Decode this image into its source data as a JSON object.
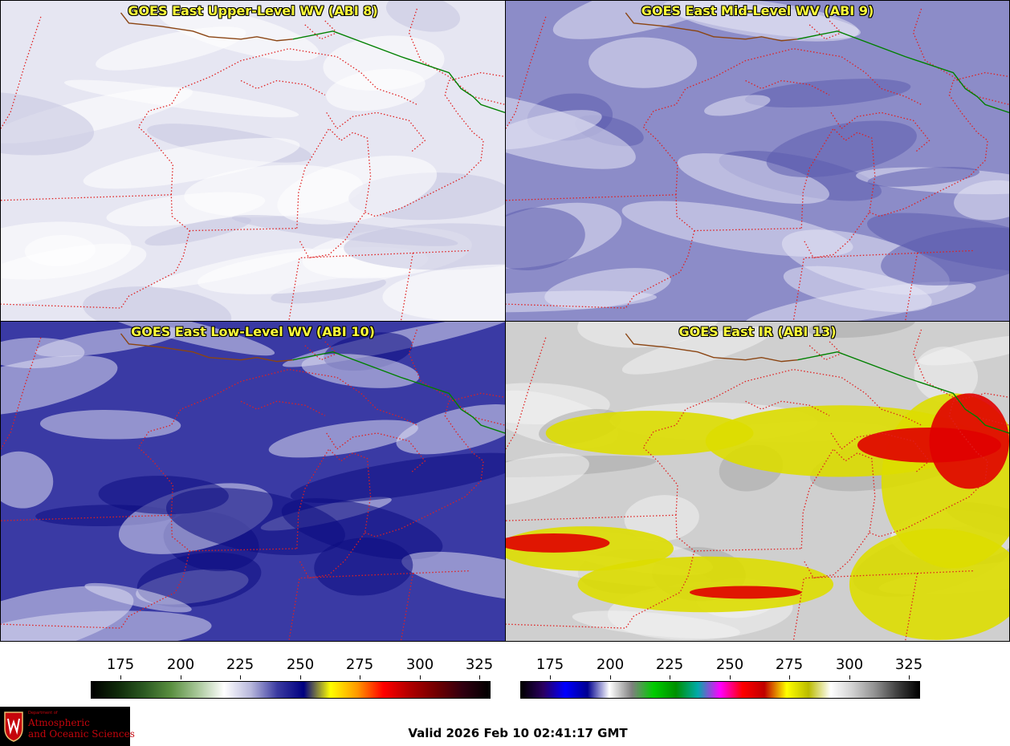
{
  "panels": [
    {
      "id": "ul",
      "title": "GOES East Upper-Level WV (ABI 8)",
      "colormap": "wv"
    },
    {
      "id": "ur",
      "title": "GOES East Mid-Level WV (ABI 9)",
      "colormap": "wv"
    },
    {
      "id": "ll",
      "title": "GOES East Low-Level WV (ABI 10)",
      "colormap": "wv"
    },
    {
      "id": "lr",
      "title": "GOES East IR (ABI 13)",
      "colormap": "ir"
    }
  ],
  "colorbars": [
    {
      "name": "water-vapor-colorbar",
      "ticks": [
        "175",
        "200",
        "225",
        "250",
        "275",
        "300",
        "325"
      ],
      "range": [
        163,
        330
      ],
      "colors": [
        "#000000",
        "#0f2a0a",
        "#2c5a22",
        "#5a8f40",
        "#a9c89a",
        "#ffffff",
        "#b8b8dc",
        "#3a3aa0",
        "#000080",
        "#ffff00",
        "#ff9900",
        "#ff0000",
        "#b00000",
        "#700000",
        "#300010",
        "#000000"
      ]
    },
    {
      "name": "infrared-colorbar",
      "ticks": [
        "175",
        "200",
        "225",
        "250",
        "275",
        "300",
        "325"
      ],
      "range": [
        163,
        330
      ],
      "colors": [
        "#000000",
        "#2a0060",
        "#0000ff",
        "#000090",
        "#ffffff",
        "#808080",
        "#00cc00",
        "#009000",
        "#00aaaa",
        "#ff00ff",
        "#ff0000",
        "#c00000",
        "#ffff00",
        "#bbbb00",
        "#ffffff",
        "#d0d0d0",
        "#909090",
        "#404040",
        "#000000"
      ]
    }
  ],
  "logo": {
    "dept_line": "Department of",
    "name_line1": "Atmospheric",
    "name_line2": "and Oceanic Sciences"
  },
  "valid_time": "Valid 2026 Feb 10 02:41:17 GMT"
}
